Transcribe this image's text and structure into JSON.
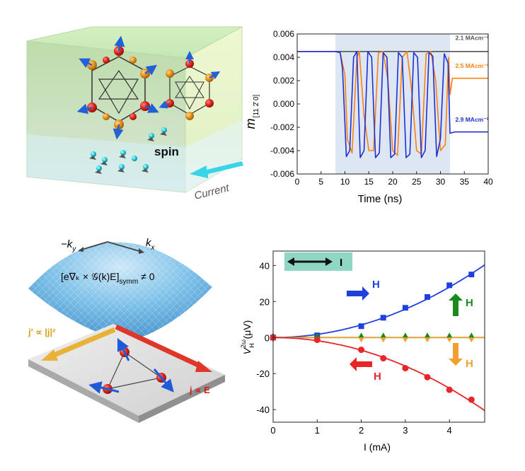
{
  "panel_a": {
    "spin_label": "spin",
    "current_label": "Current"
  },
  "panel_c": {
    "neg_ky": "−k",
    "neg_ky_sub": "y",
    "kx": "k",
    "kx_sub": "x",
    "formula": "[e∇ₖ × 𝒢(k)E]",
    "formula_sub": "symm",
    "formula_tail": "≠ 0",
    "j_prime_label": "j′ ∝ |j|²",
    "j_label": "j ∝ E"
  },
  "chart_data": [
    {
      "type": "line",
      "xlabel": "Time (ns)",
      "ylabel": "m",
      "ylabel_sub": "[11 2̄ 0]",
      "xlim": [
        0,
        40
      ],
      "ylim": [
        -0.006,
        0.006
      ],
      "xticks": [
        "0",
        "5",
        "10",
        "15",
        "20",
        "25",
        "30",
        "35",
        "40"
      ],
      "yticks": [
        "0.006",
        "0.004",
        "0.002",
        "0.000",
        "-0.002",
        "-0.004",
        "-0.006"
      ],
      "shaded_x": [
        8,
        32
      ],
      "series": [
        {
          "name": "2.1 MAcm⁻²",
          "color": "#555555",
          "x": [
            0,
            8,
            32,
            40
          ],
          "y": [
            0.0045,
            0.0045,
            0.0045,
            0.0045
          ]
        },
        {
          "name": "2.5 MAcm⁻²",
          "color": "#ff7f0e",
          "x": [
            0,
            8,
            9,
            10,
            10.5,
            11.5,
            12.5,
            13,
            14,
            15,
            16,
            17,
            18,
            19,
            20,
            21,
            22,
            23,
            24,
            25,
            26,
            27,
            28,
            29,
            30,
            31,
            31.7,
            32,
            32.5,
            40
          ],
          "y": [
            0.0045,
            0.0045,
            0.0044,
            0.0025,
            -0.003,
            -0.0042,
            0.004,
            0.0045,
            -0.001,
            -0.004,
            -0.004,
            0.0044,
            0.0045,
            0.002,
            -0.004,
            -0.0044,
            0.004,
            0.0045,
            0.001,
            -0.004,
            -0.0043,
            0.0043,
            0.0045,
            0.002,
            -0.004,
            -0.0035,
            0.004,
            0.0008,
            0.0022,
            0.0022
          ]
        },
        {
          "name": "2.9 MAcm⁻²",
          "color": "#1f2fd1",
          "x": [
            0,
            8,
            9,
            9.5,
            10.3,
            11,
            11.8,
            12.5,
            13.2,
            14,
            14.8,
            15.6,
            16.4,
            17.2,
            18,
            18.8,
            19.6,
            20.4,
            21.2,
            22,
            22.8,
            23.6,
            24.4,
            25.2,
            26,
            26.8,
            27.6,
            28.4,
            29.2,
            30,
            30.8,
            31.6,
            32,
            33,
            40
          ],
          "y": [
            0.0045,
            0.0045,
            0.0044,
            0.003,
            -0.0045,
            -0.004,
            0.004,
            0.0045,
            -0.0046,
            -0.004,
            0.0045,
            0.004,
            -0.0046,
            -0.0042,
            0.0044,
            0.004,
            -0.0046,
            -0.0043,
            0.0044,
            0.004,
            -0.0046,
            -0.0043,
            0.0044,
            0.004,
            -0.0046,
            -0.004,
            0.0044,
            0.0041,
            -0.0045,
            -0.003,
            0.0043,
            0.0035,
            -0.0025,
            -0.0024,
            -0.0024
          ]
        }
      ]
    },
    {
      "type": "line",
      "xlabel": "I (mA)",
      "ylabel": "V",
      "ylabel_sup": "2ω",
      "ylabel_sub": "H",
      "ylabel_unit": "(μV)",
      "xlim": [
        0,
        4.8
      ],
      "ylim": [
        -47,
        48
      ],
      "xticks": [
        0,
        1,
        2,
        3,
        4
      ],
      "yticks": [
        40,
        20,
        0,
        -20,
        -40
      ],
      "legend_current": "I",
      "series": [
        {
          "name": "H",
          "color": "#1f3fe0",
          "marker": "square",
          "x": [
            0,
            1,
            2,
            2.5,
            3,
            3.5,
            4,
            4.5
          ],
          "y": [
            0,
            1.2,
            6.3,
            11,
            16.5,
            22.5,
            29,
            35
          ],
          "fit_coeff": 1.75
        },
        {
          "name": "H",
          "color": "#1a8a1a",
          "marker": "diamond-up",
          "x": [
            0,
            1,
            2,
            2.5,
            3,
            3.5,
            4,
            4.5
          ],
          "y": [
            0,
            0,
            0,
            0,
            0,
            0,
            0,
            0
          ]
        },
        {
          "name": "H",
          "color": "#f0a030",
          "marker": "diamond-down",
          "x": [
            0,
            1,
            2,
            2.5,
            3,
            3.5,
            4,
            4.5
          ],
          "y": [
            0,
            0,
            0,
            0,
            0,
            0,
            0,
            0
          ]
        },
        {
          "name": "H",
          "color": "#e8262a",
          "marker": "circle",
          "x": [
            0,
            1,
            2,
            2.5,
            3,
            3.5,
            4,
            4.5
          ],
          "y": [
            0,
            -1.3,
            -6.8,
            -11.5,
            -17,
            -22,
            -29,
            -34.5
          ],
          "fit_coeff": -1.76
        }
      ]
    }
  ]
}
